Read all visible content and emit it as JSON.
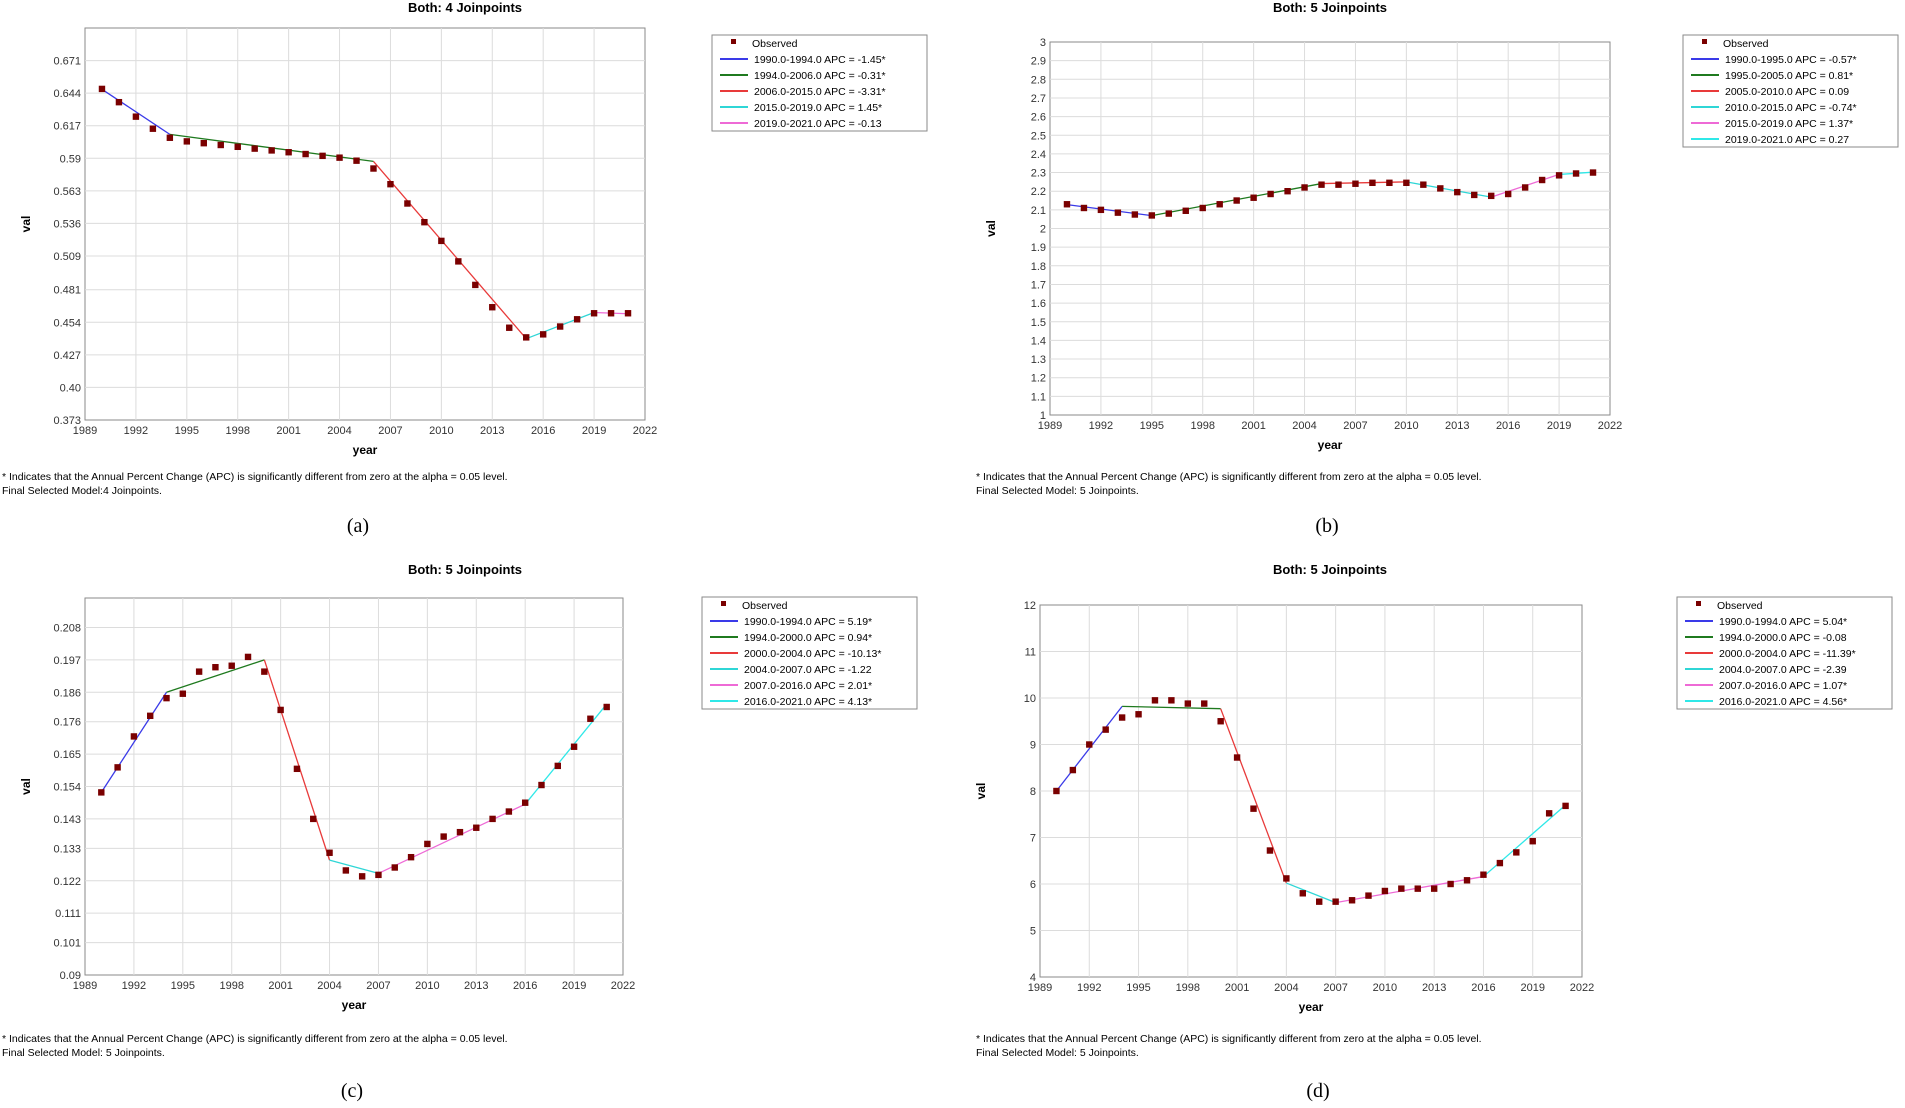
{
  "chart_data": [
    {
      "type": "line",
      "caption": "(a)",
      "title": "Both: 4 Joinpoints",
      "xlabel": "year",
      "ylabel": "val",
      "xlim": [
        1989,
        2022
      ],
      "ylim": [
        0.373,
        0.698
      ],
      "x_tick_labels": [
        "1989",
        "1992",
        "1995",
        "1998",
        "2001",
        "2004",
        "2007",
        "2010",
        "2013",
        "2016",
        "2019",
        "2022"
      ],
      "y_tick_labels": [
        "0.373",
        "0.40",
        "0.427",
        "0.454",
        "0.481",
        "0.509",
        "0.536",
        "0.563",
        "0.59",
        "0.617",
        "0.644",
        "0.671"
      ],
      "observed_label": "Observed",
      "x": [
        1990,
        1991,
        1992,
        1993,
        1994,
        1995,
        1996,
        1997,
        1998,
        1999,
        2000,
        2001,
        2002,
        2003,
        2004,
        2005,
        2006,
        2007,
        2008,
        2009,
        2010,
        2011,
        2012,
        2013,
        2014,
        2015,
        2016,
        2017,
        2018,
        2019,
        2020,
        2021
      ],
      "observed": [
        0.6475,
        0.6365,
        0.6245,
        0.6145,
        0.607,
        0.604,
        0.6025,
        0.601,
        0.5995,
        0.598,
        0.5965,
        0.595,
        0.5935,
        0.592,
        0.5905,
        0.588,
        0.5815,
        0.5685,
        0.5525,
        0.537,
        0.5215,
        0.5045,
        0.485,
        0.4665,
        0.4495,
        0.4415,
        0.444,
        0.4505,
        0.4565,
        0.4615,
        0.4615,
        0.4615
      ],
      "segments": [
        {
          "label": "1990.0-1994.0 APC = -1.45*",
          "color": "#3a3ae8",
          "x": [
            1990,
            1994
          ],
          "y": [
            0.6472,
            0.6098
          ]
        },
        {
          "label": "1994.0-2006.0 APC = -0.31*",
          "color": "#1f7a1f",
          "x": [
            1994,
            2006
          ],
          "y": [
            0.6098,
            0.5874
          ]
        },
        {
          "label": "2006.0-2015.0 APC = -3.31*",
          "color": "#e83a3a",
          "x": [
            2006,
            2015
          ],
          "y": [
            0.5874,
            0.4404
          ]
        },
        {
          "label": "2015.0-2019.0 APC = 1.45*",
          "color": "#2fd6d6",
          "x": [
            2015,
            2019
          ],
          "y": [
            0.4404,
            0.4621
          ]
        },
        {
          "label": "2019.0-2021.0 APC = -0.13",
          "color": "#ee6ad6",
          "x": [
            2019,
            2021
          ],
          "y": [
            0.4621,
            0.4611
          ]
        }
      ],
      "footnote_1": "* Indicates that the Annual Percent Change (APC) is significantly different from zero at the alpha = 0.05 level.",
      "footnote_2": "Final Selected Model:4 Joinpoints."
    },
    {
      "type": "line",
      "caption": "(b)",
      "title": "Both: 5 Joinpoints",
      "xlabel": "year",
      "ylabel": "val",
      "xlim": [
        1989,
        2022
      ],
      "ylim": [
        1,
        3
      ],
      "x_tick_labels": [
        "1989",
        "1992",
        "1995",
        "1998",
        "2001",
        "2004",
        "2007",
        "2010",
        "2013",
        "2016",
        "2019",
        "2022"
      ],
      "y_tick_labels": [
        "1",
        "1.1",
        "1.2",
        "1.3",
        "1.4",
        "1.5",
        "1.6",
        "1.7",
        "1.8",
        "1.9",
        "2",
        "2.1",
        "2.2",
        "2.3",
        "2.4",
        "2.5",
        "2.6",
        "2.7",
        "2.8",
        "2.9",
        "3"
      ],
      "observed_label": "Observed",
      "x": [
        1990,
        1991,
        1992,
        1993,
        1994,
        1995,
        1996,
        1997,
        1998,
        1999,
        2000,
        2001,
        2002,
        2003,
        2004,
        2005,
        2006,
        2007,
        2008,
        2009,
        2010,
        2011,
        2012,
        2013,
        2014,
        2015,
        2016,
        2017,
        2018,
        2019,
        2020,
        2021
      ],
      "observed": [
        2.13,
        2.11,
        2.1,
        2.085,
        2.075,
        2.07,
        2.08,
        2.095,
        2.11,
        2.13,
        2.15,
        2.165,
        2.185,
        2.2,
        2.22,
        2.235,
        2.235,
        2.24,
        2.245,
        2.245,
        2.245,
        2.235,
        2.215,
        2.195,
        2.18,
        2.175,
        2.185,
        2.22,
        2.26,
        2.285,
        2.295,
        2.3
      ],
      "segments": [
        {
          "label": "1990.0-1995.0 APC = -0.57*",
          "color": "#3a3ae8",
          "x": [
            1990,
            1995
          ],
          "y": [
            2.128,
            2.069
          ]
        },
        {
          "label": "1995.0-2005.0 APC = 0.81*",
          "color": "#1f7a1f",
          "x": [
            1995,
            2005
          ],
          "y": [
            2.069,
            2.241
          ]
        },
        {
          "label": "2005.0-2010.0 APC = 0.09",
          "color": "#e83a3a",
          "x": [
            2005,
            2010
          ],
          "y": [
            2.241,
            2.25
          ]
        },
        {
          "label": "2010.0-2015.0 APC = -0.74*",
          "color": "#2fd6d6",
          "x": [
            2010,
            2015
          ],
          "y": [
            2.25,
            2.168
          ]
        },
        {
          "label": "2015.0-2019.0 APC = 1.37*",
          "color": "#ee6ad6",
          "x": [
            2015,
            2019
          ],
          "y": [
            2.168,
            2.29
          ]
        },
        {
          "label": "2019.0-2021.0 APC = 0.27",
          "color": "#2fe8e8",
          "x": [
            2019,
            2021
          ],
          "y": [
            2.29,
            2.302
          ]
        }
      ],
      "footnote_1": "* Indicates that the Annual Percent Change (APC) is significantly different from zero at the alpha = 0.05 level.",
      "footnote_2": "Final Selected Model: 5 Joinpoints."
    },
    {
      "type": "line",
      "caption": "(c)",
      "title": "Both: 5 Joinpoints",
      "xlabel": "year",
      "ylabel": "val",
      "xlim": [
        1989,
        2022
      ],
      "ylim": [
        0.09,
        0.218
      ],
      "x_tick_labels": [
        "1989",
        "1992",
        "1995",
        "1998",
        "2001",
        "2004",
        "2007",
        "2010",
        "2013",
        "2016",
        "2019",
        "2022"
      ],
      "y_tick_labels": [
        "0.09",
        "0.101",
        "0.111",
        "0.122",
        "0.133",
        "0.143",
        "0.154",
        "0.165",
        "0.176",
        "0.186",
        "0.197",
        "0.208"
      ],
      "observed_label": "Observed",
      "x": [
        1990,
        1991,
        1992,
        1993,
        1994,
        1995,
        1996,
        1997,
        1998,
        1999,
        2000,
        2001,
        2002,
        2003,
        2004,
        2005,
        2006,
        2007,
        2008,
        2009,
        2010,
        2011,
        2012,
        2013,
        2014,
        2015,
        2016,
        2017,
        2018,
        2019,
        2020,
        2021
      ],
      "observed": [
        0.152,
        0.1605,
        0.171,
        0.178,
        0.184,
        0.1855,
        0.193,
        0.1945,
        0.195,
        0.198,
        0.193,
        0.18,
        0.16,
        0.143,
        0.1315,
        0.1255,
        0.1235,
        0.124,
        0.1265,
        0.13,
        0.1345,
        0.137,
        0.1385,
        0.14,
        0.143,
        0.1455,
        0.1485,
        0.1545,
        0.161,
        0.1675,
        0.177,
        0.181
      ],
      "segments": [
        {
          "label": "1990.0-1994.0 APC = 5.19*",
          "color": "#3a3ae8",
          "x": [
            1990,
            1994
          ],
          "y": [
            0.152,
            0.186
          ]
        },
        {
          "label": "1994.0-2000.0 APC = 0.94*",
          "color": "#1f7a1f",
          "x": [
            1994,
            2000
          ],
          "y": [
            0.186,
            0.197
          ]
        },
        {
          "label": "2000.0-2004.0 APC = -10.13*",
          "color": "#e83a3a",
          "x": [
            2000,
            2004
          ],
          "y": [
            0.197,
            0.129
          ]
        },
        {
          "label": "2004.0-2007.0 APC = -1.22",
          "color": "#2fd6d6",
          "x": [
            2004,
            2007
          ],
          "y": [
            0.129,
            0.1245
          ]
        },
        {
          "label": "2007.0-2016.0 APC = 2.01*",
          "color": "#ee6ad6",
          "x": [
            2007,
            2016
          ],
          "y": [
            0.1245,
            0.148
          ]
        },
        {
          "label": "2016.0-2021.0 APC = 4.13*",
          "color": "#2fe8e8",
          "x": [
            2016,
            2021
          ],
          "y": [
            0.148,
            0.182
          ]
        }
      ],
      "footnote_1": "* Indicates that the Annual Percent Change (APC) is significantly different from zero at the alpha = 0.05 level.",
      "footnote_2": "Final Selected Model: 5 Joinpoints."
    },
    {
      "type": "line",
      "caption": "(d)",
      "title": "Both: 5 Joinpoints",
      "xlabel": "year",
      "ylabel": "val",
      "xlim": [
        1989,
        2022
      ],
      "ylim": [
        4,
        12
      ],
      "x_tick_labels": [
        "1989",
        "1992",
        "1995",
        "1998",
        "2001",
        "2004",
        "2007",
        "2010",
        "2013",
        "2016",
        "2019",
        "2022"
      ],
      "y_tick_labels": [
        "4",
        "5",
        "6",
        "7",
        "8",
        "9",
        "10",
        "11",
        "12"
      ],
      "observed_label": "Observed",
      "x": [
        1990,
        1991,
        1992,
        1993,
        1994,
        1995,
        1996,
        1997,
        1998,
        1999,
        2000,
        2001,
        2002,
        2003,
        2004,
        2005,
        2006,
        2007,
        2008,
        2009,
        2010,
        2011,
        2012,
        2013,
        2014,
        2015,
        2016,
        2017,
        2018,
        2019,
        2020,
        2021
      ],
      "observed": [
        8.0,
        8.45,
        9.0,
        9.32,
        9.58,
        9.65,
        9.95,
        9.95,
        9.88,
        9.88,
        9.5,
        8.72,
        7.62,
        6.72,
        6.12,
        5.8,
        5.62,
        5.62,
        5.65,
        5.75,
        5.85,
        5.9,
        5.9,
        5.9,
        6.0,
        6.08,
        6.2,
        6.45,
        6.68,
        6.92,
        7.52,
        7.68
      ],
      "segments": [
        {
          "label": "1990.0-1994.0 APC = 5.04*",
          "color": "#3a3ae8",
          "x": [
            1990,
            1994
          ],
          "y": [
            8.0,
            9.82
          ]
        },
        {
          "label": "1994.0-2000.0 APC = -0.08",
          "color": "#1f7a1f",
          "x": [
            1994,
            2000
          ],
          "y": [
            9.82,
            9.77
          ]
        },
        {
          "label": "2000.0-2004.0 APC = -11.39*",
          "color": "#e83a3a",
          "x": [
            2000,
            2004
          ],
          "y": [
            9.77,
            6.02
          ]
        },
        {
          "label": "2004.0-2007.0 APC = -2.39",
          "color": "#2fd6d6",
          "x": [
            2004,
            2007
          ],
          "y": [
            6.02,
            5.6
          ]
        },
        {
          "label": "2007.0-2016.0 APC = 1.07*",
          "color": "#ee6ad6",
          "x": [
            2007,
            2016
          ],
          "y": [
            5.6,
            6.16
          ]
        },
        {
          "label": "2016.0-2021.0 APC = 4.56*",
          "color": "#2fe8e8",
          "x": [
            2016,
            2021
          ],
          "y": [
            6.16,
            7.7
          ]
        }
      ],
      "footnote_1": "* Indicates that the Annual Percent Change (APC) is significantly different from zero at the alpha = 0.05 level.",
      "footnote_2": "Final Selected Model: 5 Joinpoints."
    }
  ]
}
